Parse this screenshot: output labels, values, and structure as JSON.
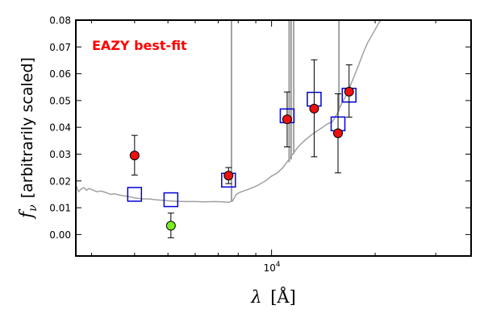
{
  "chart_data": {
    "type": "scatter",
    "title": "",
    "xlabel": "λ [Å]",
    "ylabel": "f_ν [arbitrarily scaled]",
    "ylabel_symbol": "f",
    "ylabel_subscript": "ν",
    "ylabel_text": "[arbitrarily scaled]",
    "xlabel_symbol": "λ",
    "xlabel_unit": "[Å]",
    "xscale": "log",
    "xlim": [
      2700,
      38000
    ],
    "ylim": [
      -0.008,
      0.08
    ],
    "yticks": [
      0.0,
      0.01,
      0.02,
      0.03,
      0.04,
      0.05,
      0.06,
      0.07,
      0.08
    ],
    "ytick_labels": [
      "0.00",
      "0.01",
      "0.02",
      "0.03",
      "0.04",
      "0.05",
      "0.06",
      "0.07",
      "0.08"
    ],
    "xtick_major": [
      10000
    ],
    "xtick_major_labels": [
      "10",
      "4"
    ],
    "xtick_minor": [
      3000,
      4000,
      5000,
      6000,
      7000,
      8000,
      9000,
      20000,
      30000
    ],
    "annotation": {
      "text": "EAZY best-fit",
      "color": "#ff0000"
    },
    "template_color": "#a0a0a0",
    "model_color": "#0000dd",
    "observed_color": "#ee1111",
    "nondetection_color": "#77ee22",
    "template": {
      "lambda": [
        2700,
        2750,
        2800,
        2850,
        2900,
        2950,
        3000,
        3100,
        3200,
        3300,
        3400,
        3500,
        3600,
        3700,
        3800,
        3900,
        4000,
        4200,
        4400,
        4600,
        4800,
        5000,
        5300,
        5600,
        6000,
        6400,
        6800,
        7200,
        7500,
        7700,
        7900,
        8100,
        8400,
        8700,
        9000,
        9300,
        9600,
        10000,
        10400,
        10800,
        11200,
        11600,
        12000,
        12500,
        13000,
        13500,
        14000,
        14500,
        15000,
        15500,
        16000,
        16500,
        17000,
        17500,
        18000,
        18500,
        19000,
        19500,
        20000,
        20500,
        20800,
        21000
      ],
      "flux": [
        0.0185,
        0.016,
        0.017,
        0.0175,
        0.0165,
        0.0172,
        0.0168,
        0.016,
        0.0162,
        0.0157,
        0.015,
        0.0152,
        0.0148,
        0.0145,
        0.0143,
        0.014,
        0.0137,
        0.0133,
        0.0133,
        0.013,
        0.0128,
        0.0126,
        0.0124,
        0.0123,
        0.0123,
        0.0122,
        0.0123,
        0.0122,
        0.012,
        0.0125,
        0.015,
        0.0158,
        0.0165,
        0.0172,
        0.018,
        0.019,
        0.02,
        0.0218,
        0.023,
        0.025,
        0.0278,
        0.0305,
        0.033,
        0.0352,
        0.037,
        0.0385,
        0.0398,
        0.0412,
        0.042,
        0.045,
        0.049,
        0.052,
        0.056,
        0.06,
        0.064,
        0.068,
        0.0715,
        0.074,
        0.0765,
        0.079,
        0.08,
        0.0815
      ]
    },
    "emission_lines": [
      {
        "lambda": 7650,
        "flux_base": 0.0125
      },
      {
        "lambda": 11250,
        "flux_base": 0.027
      },
      {
        "lambda": 11400,
        "flux_base": 0.028
      },
      {
        "lambda": 11600,
        "flux_base": 0.03
      },
      {
        "lambda": 15700,
        "flux_base": 0.046
      }
    ],
    "series": [
      {
        "name": "",
        "marker": "square",
        "x": [
          4000,
          5100,
          7500,
          11100,
          13300,
          15600,
          16800
        ],
        "y": [
          0.015,
          0.013,
          0.0203,
          0.0443,
          0.0505,
          0.0413,
          0.052
        ]
      },
      {
        "name": "",
        "marker": "circle",
        "x": [
          4000,
          7500,
          11100,
          13300,
          15600,
          16800
        ],
        "y": [
          0.0295,
          0.022,
          0.043,
          0.047,
          0.0378,
          0.0533
        ],
        "yerr_low": [
          0.0073,
          0.003,
          0.0103,
          0.018,
          0.0148,
          0.0095
        ],
        "yerr_high": [
          0.0075,
          0.003,
          0.0102,
          0.0182,
          0.0147,
          0.01
        ]
      },
      {
        "name": "",
        "marker": "circle",
        "x": [
          5100
        ],
        "y": [
          0.0033
        ],
        "yerr_low": [
          0.0045
        ],
        "yerr_high": [
          0.0047
        ]
      }
    ]
  }
}
